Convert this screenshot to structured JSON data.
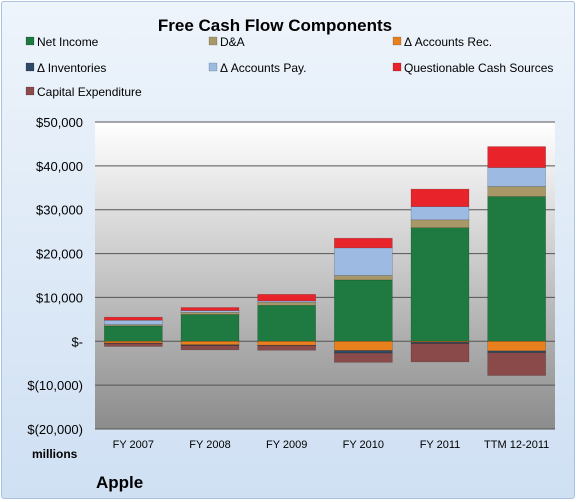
{
  "chart_data": {
    "type": "bar",
    "stacked": true,
    "title": "Free Cash Flow Components",
    "categories": [
      "FY 2007",
      "FY 2008",
      "FY 2009",
      "FY 2010",
      "FY 2011",
      "TTM 12-2011"
    ],
    "ylabel": "millions",
    "company": "Apple",
    "ylim": [
      -20000,
      50000
    ],
    "yticks": [
      50000,
      40000,
      30000,
      20000,
      10000,
      0,
      -10000,
      -20000
    ],
    "ytick_labels": [
      "$50,000",
      "$40,000",
      "$30,000",
      "$20,000",
      "$10,000",
      "$-",
      "$(10,000)",
      "$(20,000)"
    ],
    "grid": true,
    "legend_position": "top",
    "series": [
      {
        "name": "Net Income",
        "color": "#1e7a41",
        "values": [
          3500,
          6100,
          8200,
          14000,
          25900,
          33000
        ]
      },
      {
        "name": "D&A",
        "color": "#a89868",
        "values": [
          300,
          500,
          700,
          1000,
          1800,
          2300
        ]
      },
      {
        "name": "Δ Accounts Rec.",
        "color": "#e8801e",
        "values": [
          -400,
          -800,
          -900,
          -2100,
          -200,
          -2200
        ]
      },
      {
        "name": "Δ Inventories",
        "color": "#2f4a66",
        "values": [
          -80,
          -160,
          -50,
          -600,
          -300,
          -400
        ]
      },
      {
        "name": "Δ Accounts Pay.",
        "color": "#9dbae3",
        "values": [
          1000,
          400,
          300,
          6300,
          3000,
          4300
        ]
      },
      {
        "name": "Questionable Cash Sources",
        "color": "#e8242a",
        "values": [
          700,
          700,
          1500,
          2200,
          4000,
          4800
        ]
      },
      {
        "name": "Capital Expenditure",
        "color": "#8a4a4a",
        "values": [
          -700,
          -1000,
          -1100,
          -2100,
          -4200,
          -5200
        ]
      }
    ]
  }
}
